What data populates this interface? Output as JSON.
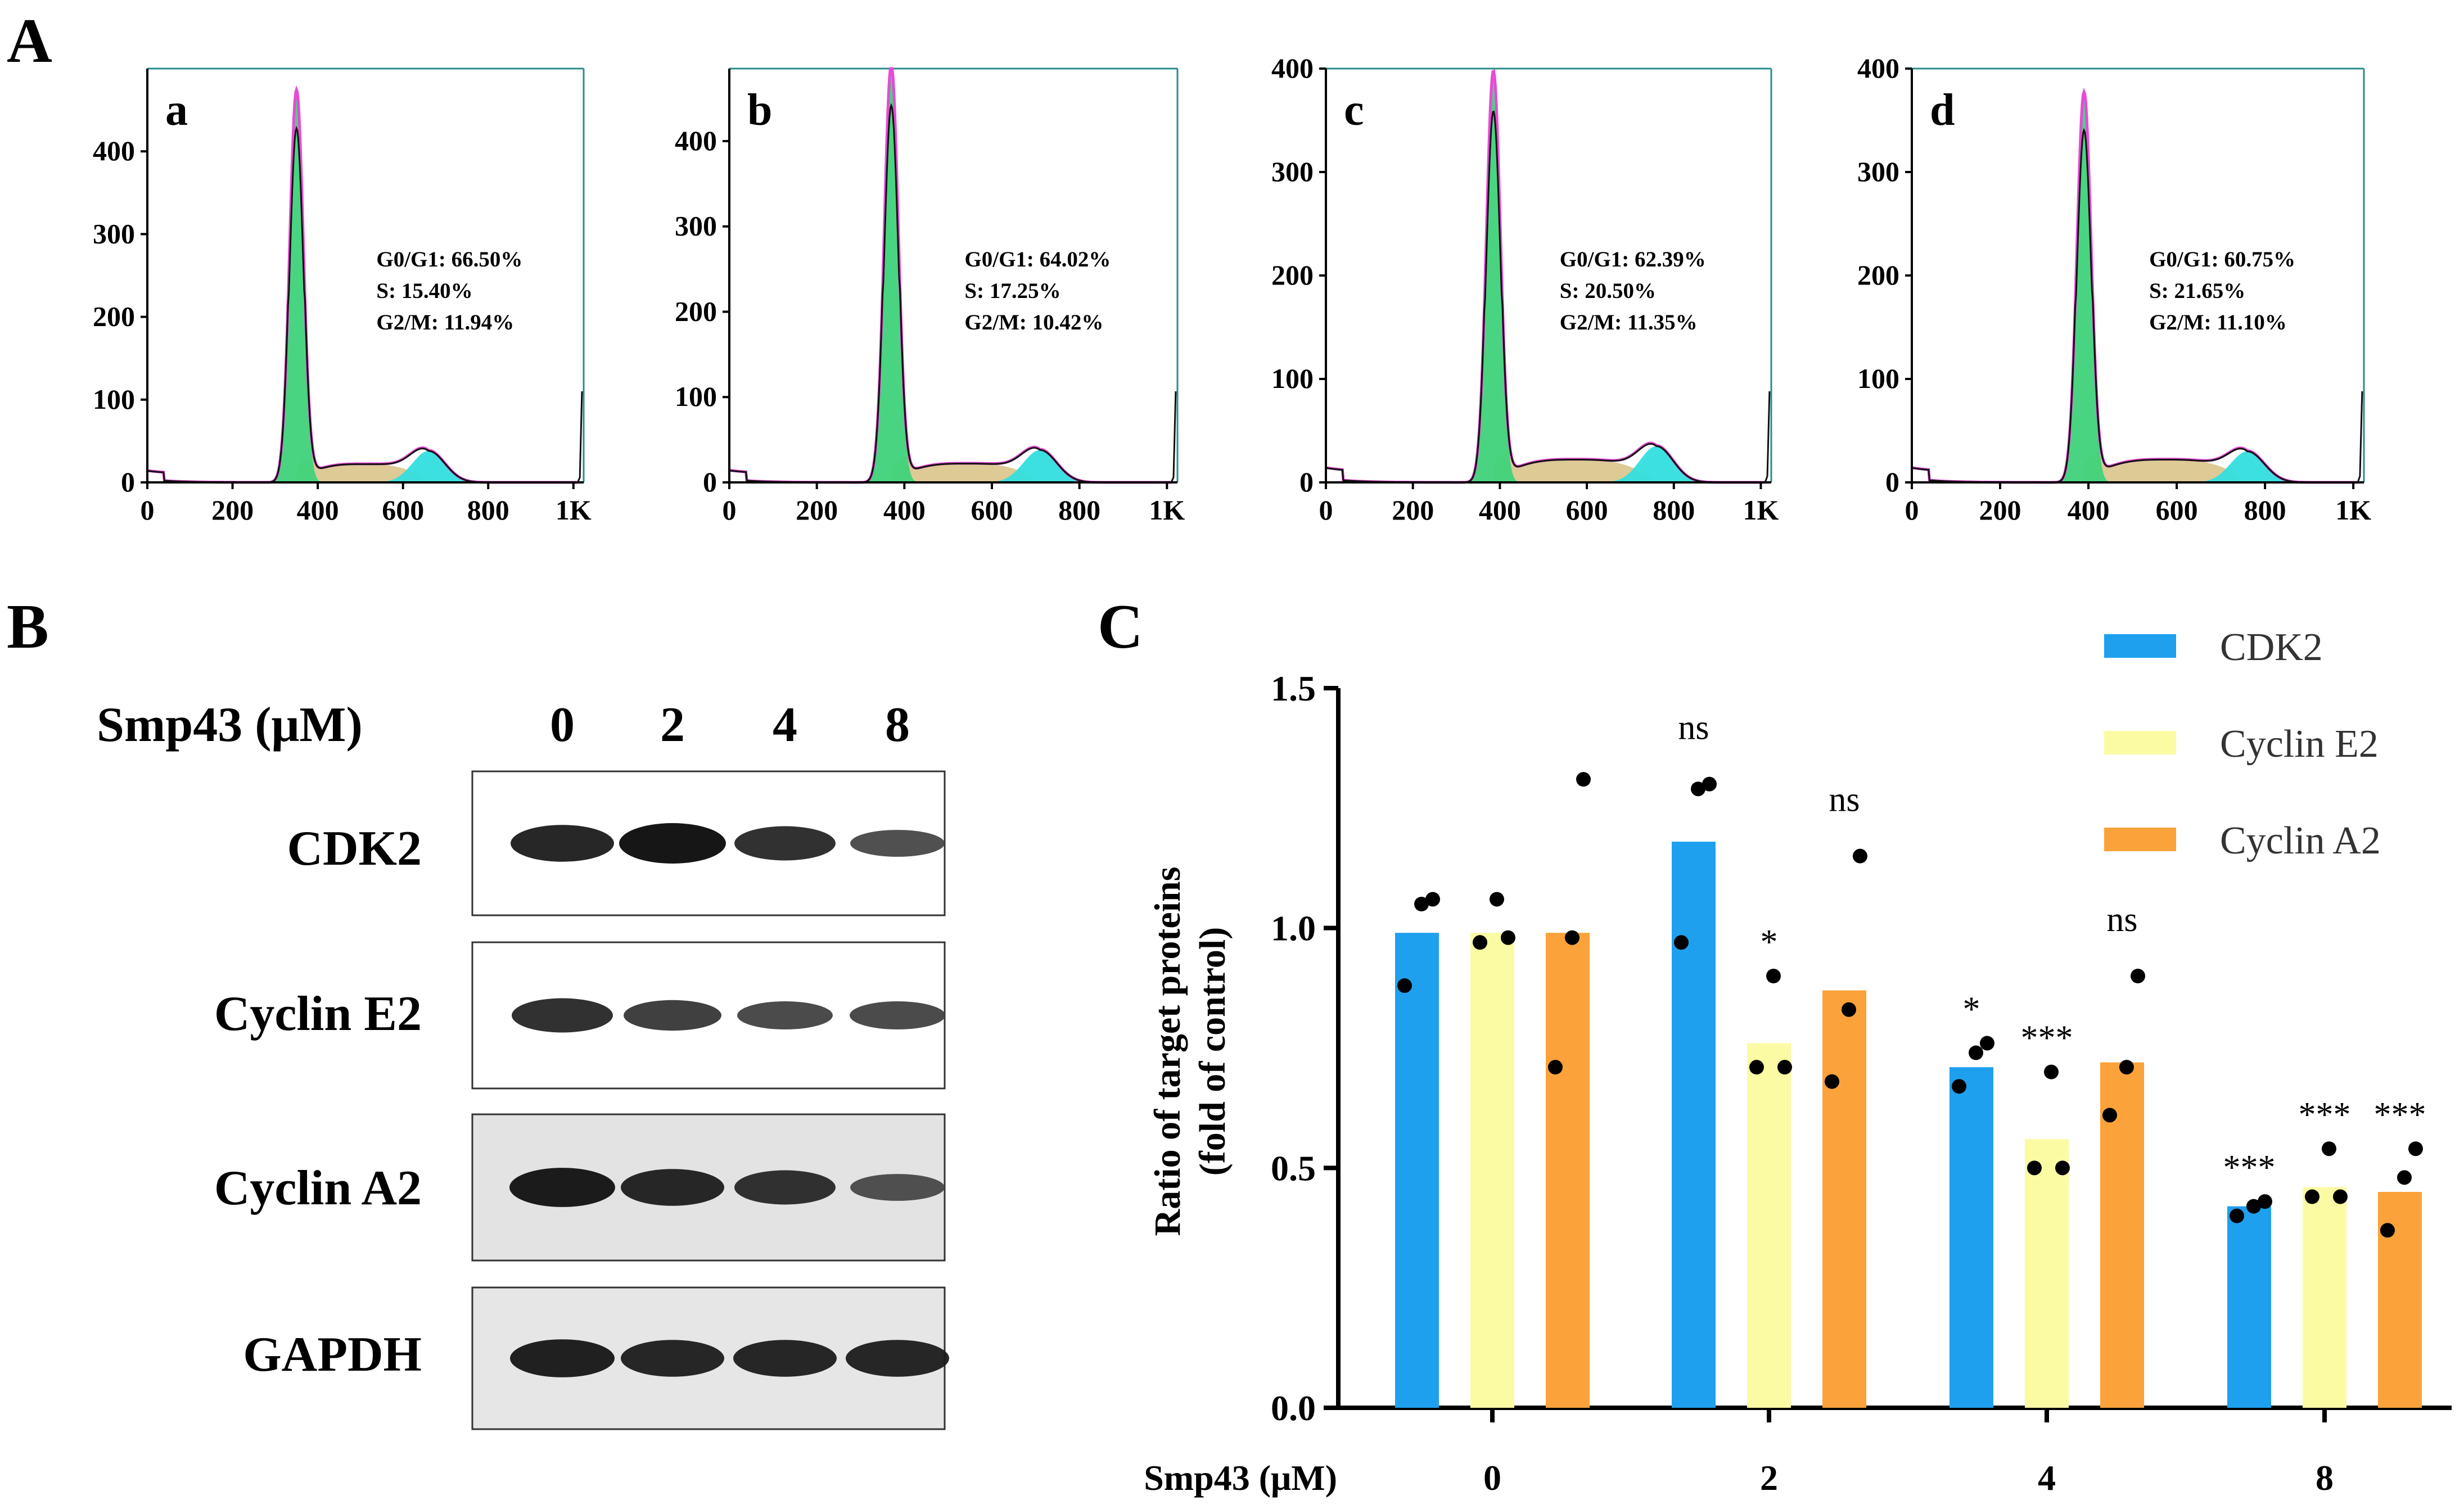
{
  "colors": {
    "g1": "#3fd27a",
    "s_phase": "#d9c48a",
    "g2": "#33dede",
    "fit_line": "#e84ad8",
    "trace": "#111111",
    "cdk2": "#1ea0ef",
    "cyclin_e2": "#fbfba4",
    "cyclin_a2": "#fba23a"
  },
  "panel_labels": {
    "a": "A",
    "b": "B",
    "c": "C"
  },
  "flow": {
    "x_tick_labels": [
      "0",
      "200",
      "400",
      "600",
      "800",
      "1K"
    ],
    "histograms": [
      {
        "id": "a",
        "label": "a",
        "y_ticks": [
          0,
          100,
          200,
          300,
          400
        ],
        "y_max": 500,
        "peak1": 465,
        "peak2": 38,
        "peak1_x": 350,
        "peak2_x": 660,
        "stats": [
          "G0/G1: 66.50%",
          "S: 15.40%",
          "G2/M: 11.94%"
        ]
      },
      {
        "id": "b",
        "label": "b",
        "y_ticks": [
          0,
          100,
          200,
          300,
          400
        ],
        "y_max": 485,
        "peak1": 480,
        "peak2": 38,
        "peak1_x": 370,
        "peak2_x": 710,
        "stats": [
          "G0/G1: 64.02%",
          "S: 17.25%",
          "G2/M: 10.42%"
        ]
      },
      {
        "id": "c",
        "label": "c",
        "y_ticks": [
          0,
          100,
          200,
          300,
          400
        ],
        "y_max": 400,
        "peak1": 390,
        "peak2": 35,
        "peak1_x": 385,
        "peak2_x": 760,
        "stats": [
          "G0/G1: 62.39%",
          "S: 20.50%",
          "G2/M: 11.35%"
        ]
      },
      {
        "id": "d",
        "label": "d",
        "y_ticks": [
          0,
          100,
          200,
          300,
          400
        ],
        "y_max": 400,
        "peak1": 370,
        "peak2": 30,
        "peak1_x": 390,
        "peak2_x": 760,
        "stats": [
          "G0/G1: 60.75%",
          "S: 21.65%",
          "G2/M: 11.10%"
        ]
      }
    ]
  },
  "western_blot": {
    "header": "Smp43 (μM)",
    "doses": [
      "0",
      "2",
      "4",
      "8"
    ],
    "rows": [
      {
        "label": "CDK2",
        "intensity": [
          0.85,
          1.0,
          0.75,
          0.45
        ]
      },
      {
        "label": "Cyclin E2",
        "intensity": [
          0.75,
          0.6,
          0.5,
          0.5
        ]
      },
      {
        "label": "Cyclin A2",
        "intensity": [
          0.95,
          0.85,
          0.75,
          0.45
        ]
      },
      {
        "label": "GAPDH",
        "intensity": [
          0.9,
          0.85,
          0.85,
          0.85
        ]
      }
    ]
  },
  "chart_data": {
    "type": "bar",
    "title": "",
    "xlabel": "Smp43 (μM)",
    "ylabel_lines": [
      "Ratio of target proteins",
      "(fold of control)"
    ],
    "categories": [
      "0",
      "2",
      "4",
      "8"
    ],
    "ylim": [
      0.0,
      1.5
    ],
    "y_ticks": [
      "0.0",
      "0.5",
      "1.0",
      "1.5"
    ],
    "legend_position": "top-right",
    "series": [
      {
        "name": "CDK2",
        "values": [
          0.99,
          1.18,
          0.71,
          0.42
        ],
        "points": [
          [
            0.88,
            1.05,
            1.06
          ],
          [
            0.97,
            1.29,
            1.3
          ],
          [
            0.67,
            0.74,
            0.76
          ],
          [
            0.4,
            0.42,
            0.43
          ]
        ],
        "significance": [
          "",
          "ns",
          "*",
          "***"
        ]
      },
      {
        "name": "Cyclin E2",
        "values": [
          0.99,
          0.76,
          0.56,
          0.46
        ],
        "points": [
          [
            0.97,
            1.06,
            0.98
          ],
          [
            0.71,
            0.9,
            0.71
          ],
          [
            0.5,
            0.7,
            0.5
          ],
          [
            0.44,
            0.54,
            0.44
          ]
        ],
        "significance": [
          "",
          "*",
          "***",
          "***"
        ]
      },
      {
        "name": "Cyclin A2",
        "values": [
          0.99,
          0.87,
          0.72,
          0.45
        ],
        "points": [
          [
            0.71,
            0.98,
            1.31
          ],
          [
            0.68,
            0.83,
            1.15
          ],
          [
            0.61,
            0.71,
            0.9
          ],
          [
            0.37,
            0.48,
            0.54
          ]
        ],
        "significance": [
          "",
          "ns",
          "ns",
          "***"
        ]
      }
    ]
  }
}
